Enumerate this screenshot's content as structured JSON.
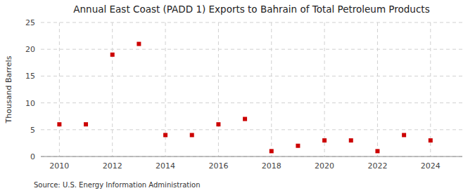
{
  "chart_data": {
    "type": "scatter",
    "title": "Annual East Coast (PADD 1) Exports to Bahrain of Total Petroleum Products",
    "ylabel": "Thousand Barrels",
    "source": "Source: U.S. Energy Information Administration",
    "x": [
      2010,
      2011,
      2012,
      2013,
      2014,
      2015,
      2016,
      2017,
      2018,
      2019,
      2020,
      2021,
      2022,
      2023,
      2024
    ],
    "values": [
      6,
      6,
      19,
      21,
      4,
      4,
      6,
      7,
      1,
      2,
      3,
      3,
      1,
      4,
      3
    ],
    "color": "#cc0000",
    "marker": "square",
    "xlim": [
      2009.3,
      2025.2
    ],
    "ylim": [
      0,
      25
    ],
    "xticks": [
      2010,
      2012,
      2014,
      2016,
      2018,
      2020,
      2022,
      2024
    ],
    "yticks": [
      0,
      5,
      10,
      15,
      20,
      25
    ],
    "grid": true
  }
}
